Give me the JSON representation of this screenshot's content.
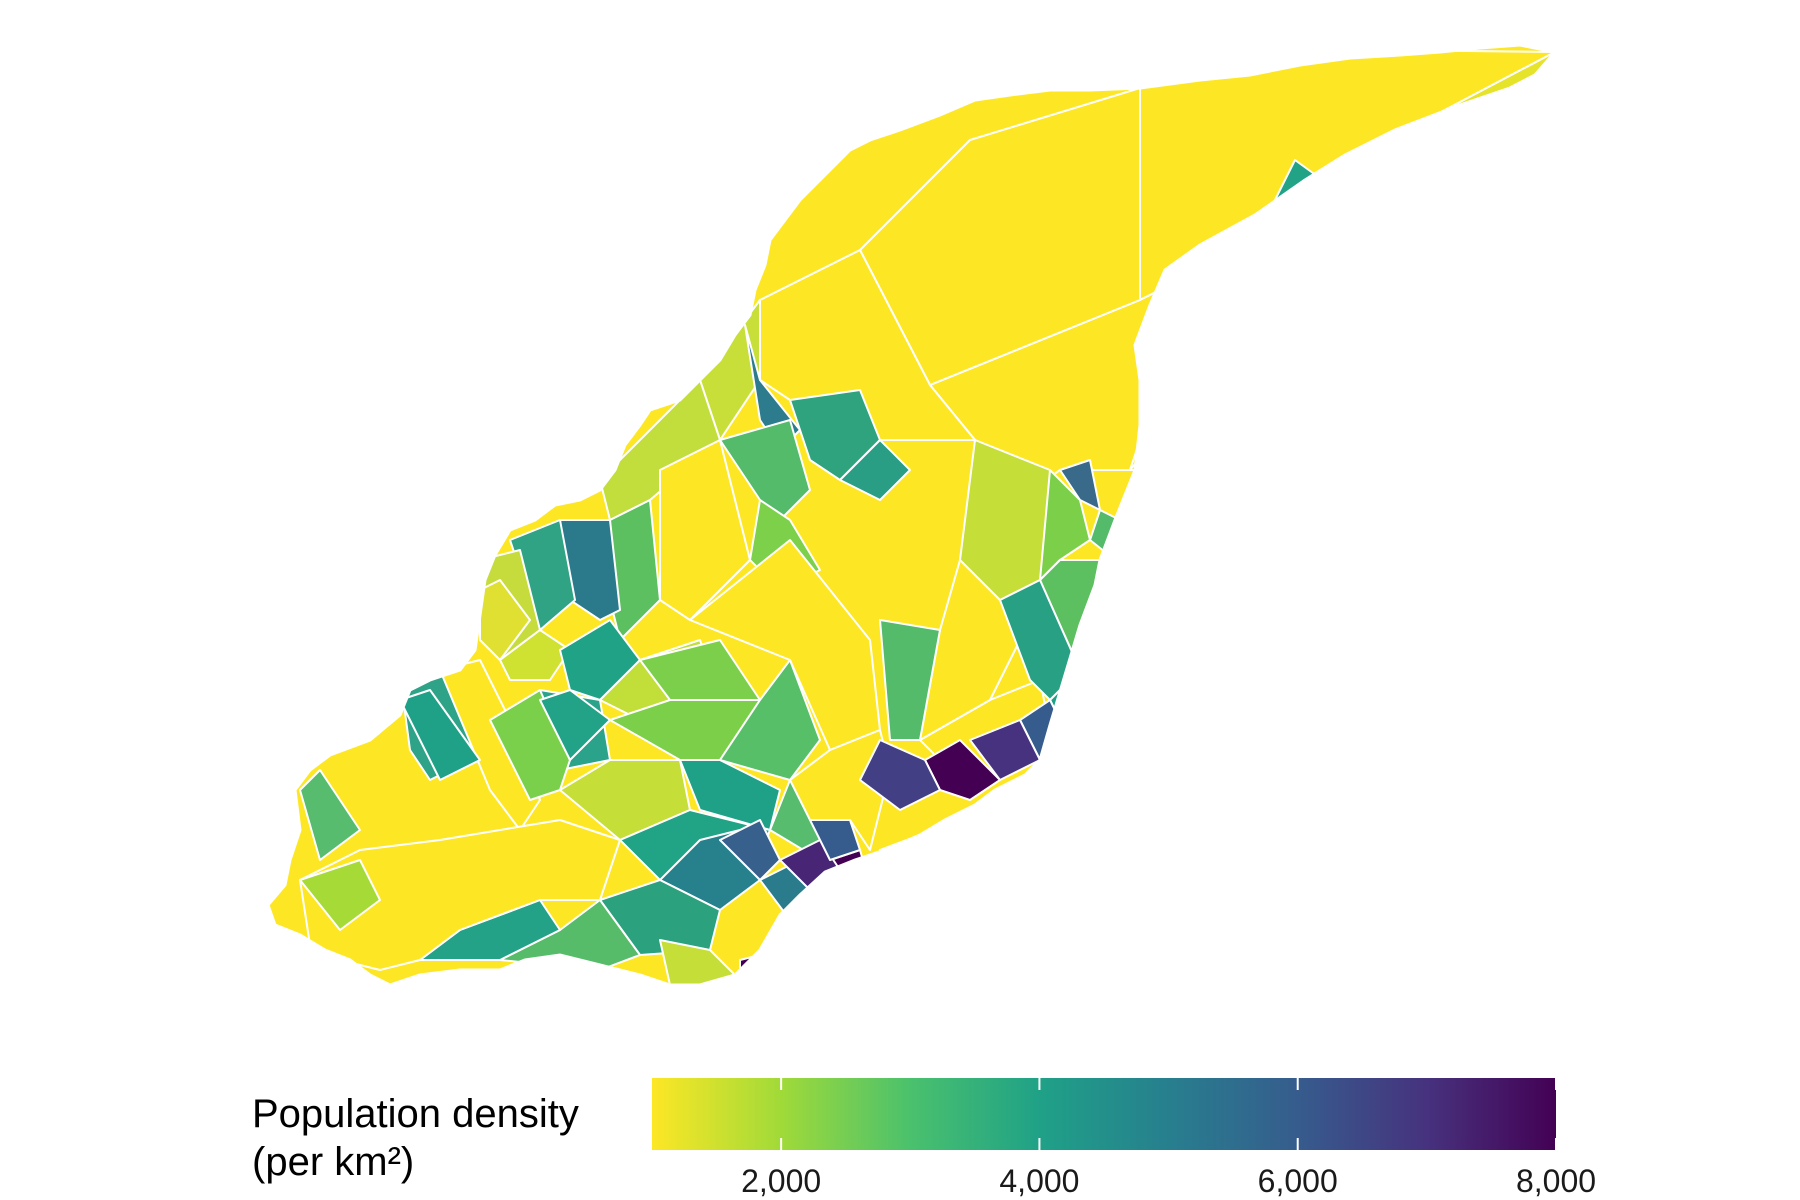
{
  "legend": {
    "title_line1": "Population density",
    "title_line2": "(per km²)",
    "min": 1000,
    "max": 8000,
    "ticks": [
      {
        "value": 2000,
        "label": "2,000"
      },
      {
        "value": 4000,
        "label": "4,000"
      },
      {
        "value": 6000,
        "label": "6,000"
      },
      {
        "value": 8000,
        "label": "8,000"
      }
    ],
    "colorscale": "viridis (reversed: low = yellow, high = dark purple)",
    "colors": [
      "#fde725",
      "#a0da39",
      "#4ac16d",
      "#1fa187",
      "#277f8e",
      "#365c8d",
      "#46327e",
      "#440154"
    ]
  },
  "chart_data": {
    "type": "choropleth",
    "title": "",
    "variable": "Population density (per km²)",
    "color_range": [
      1000,
      8000
    ],
    "regions_approx_density": [
      1000,
      1000,
      1000,
      1000,
      1000,
      1200,
      1500,
      1500,
      1800,
      2000,
      2000,
      2500,
      2500,
      3000,
      3000,
      3500,
      3500,
      3500,
      4000,
      4000,
      4500,
      5000,
      5000,
      5500,
      6000,
      6500,
      7000,
      8000,
      8000,
      8000
    ]
  }
}
